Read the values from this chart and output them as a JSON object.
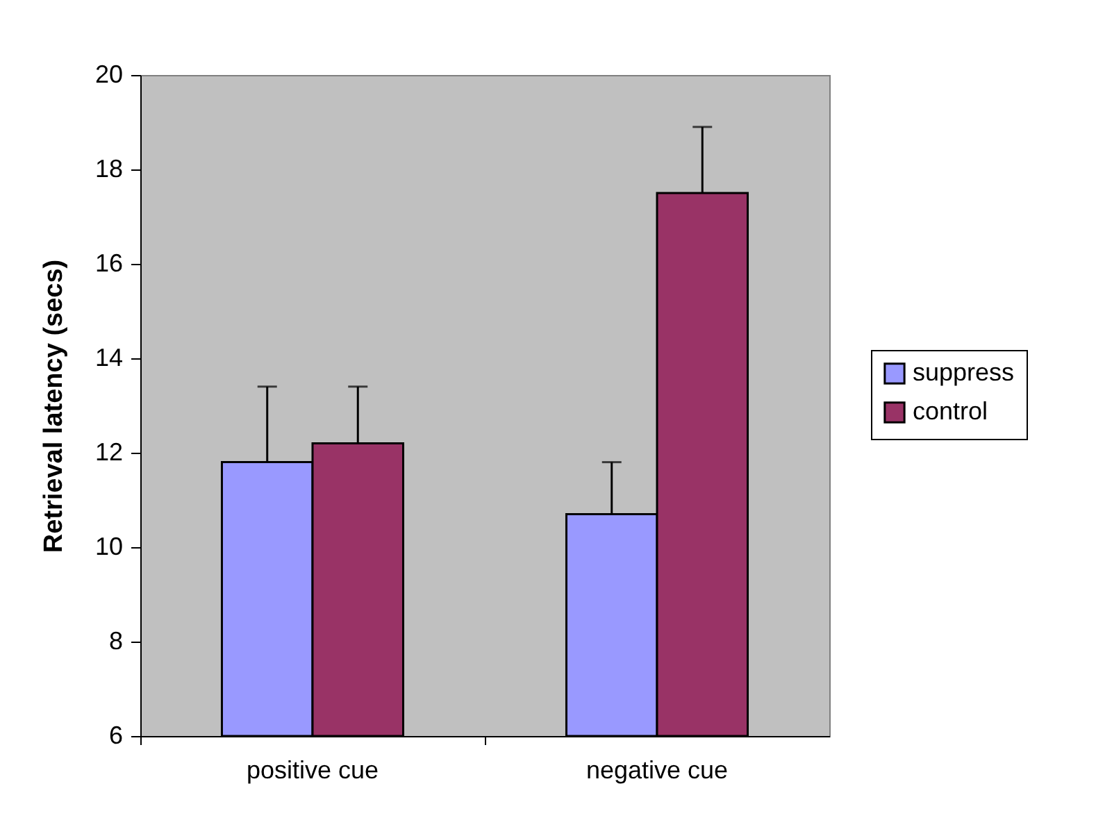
{
  "chart_data": {
    "type": "bar",
    "ylabel": "Retrieval latency (secs)",
    "categories": [
      "positive cue",
      "negative cue"
    ],
    "series": [
      {
        "name": "suppress",
        "color": "#9999ff",
        "values": [
          11.8,
          10.7
        ],
        "errors": [
          [
            11.8,
            13.4
          ],
          [
            10.7,
            11.8
          ]
        ]
      },
      {
        "name": "control",
        "color": "#993366",
        "values": [
          12.2,
          17.5
        ],
        "errors": [
          [
            12.2,
            13.4
          ],
          [
            17.5,
            18.9
          ]
        ]
      }
    ],
    "ylim": [
      6,
      20
    ],
    "yticks": [
      6,
      8,
      10,
      12,
      14,
      16,
      18,
      20
    ],
    "grid": false,
    "legend": "right"
  }
}
